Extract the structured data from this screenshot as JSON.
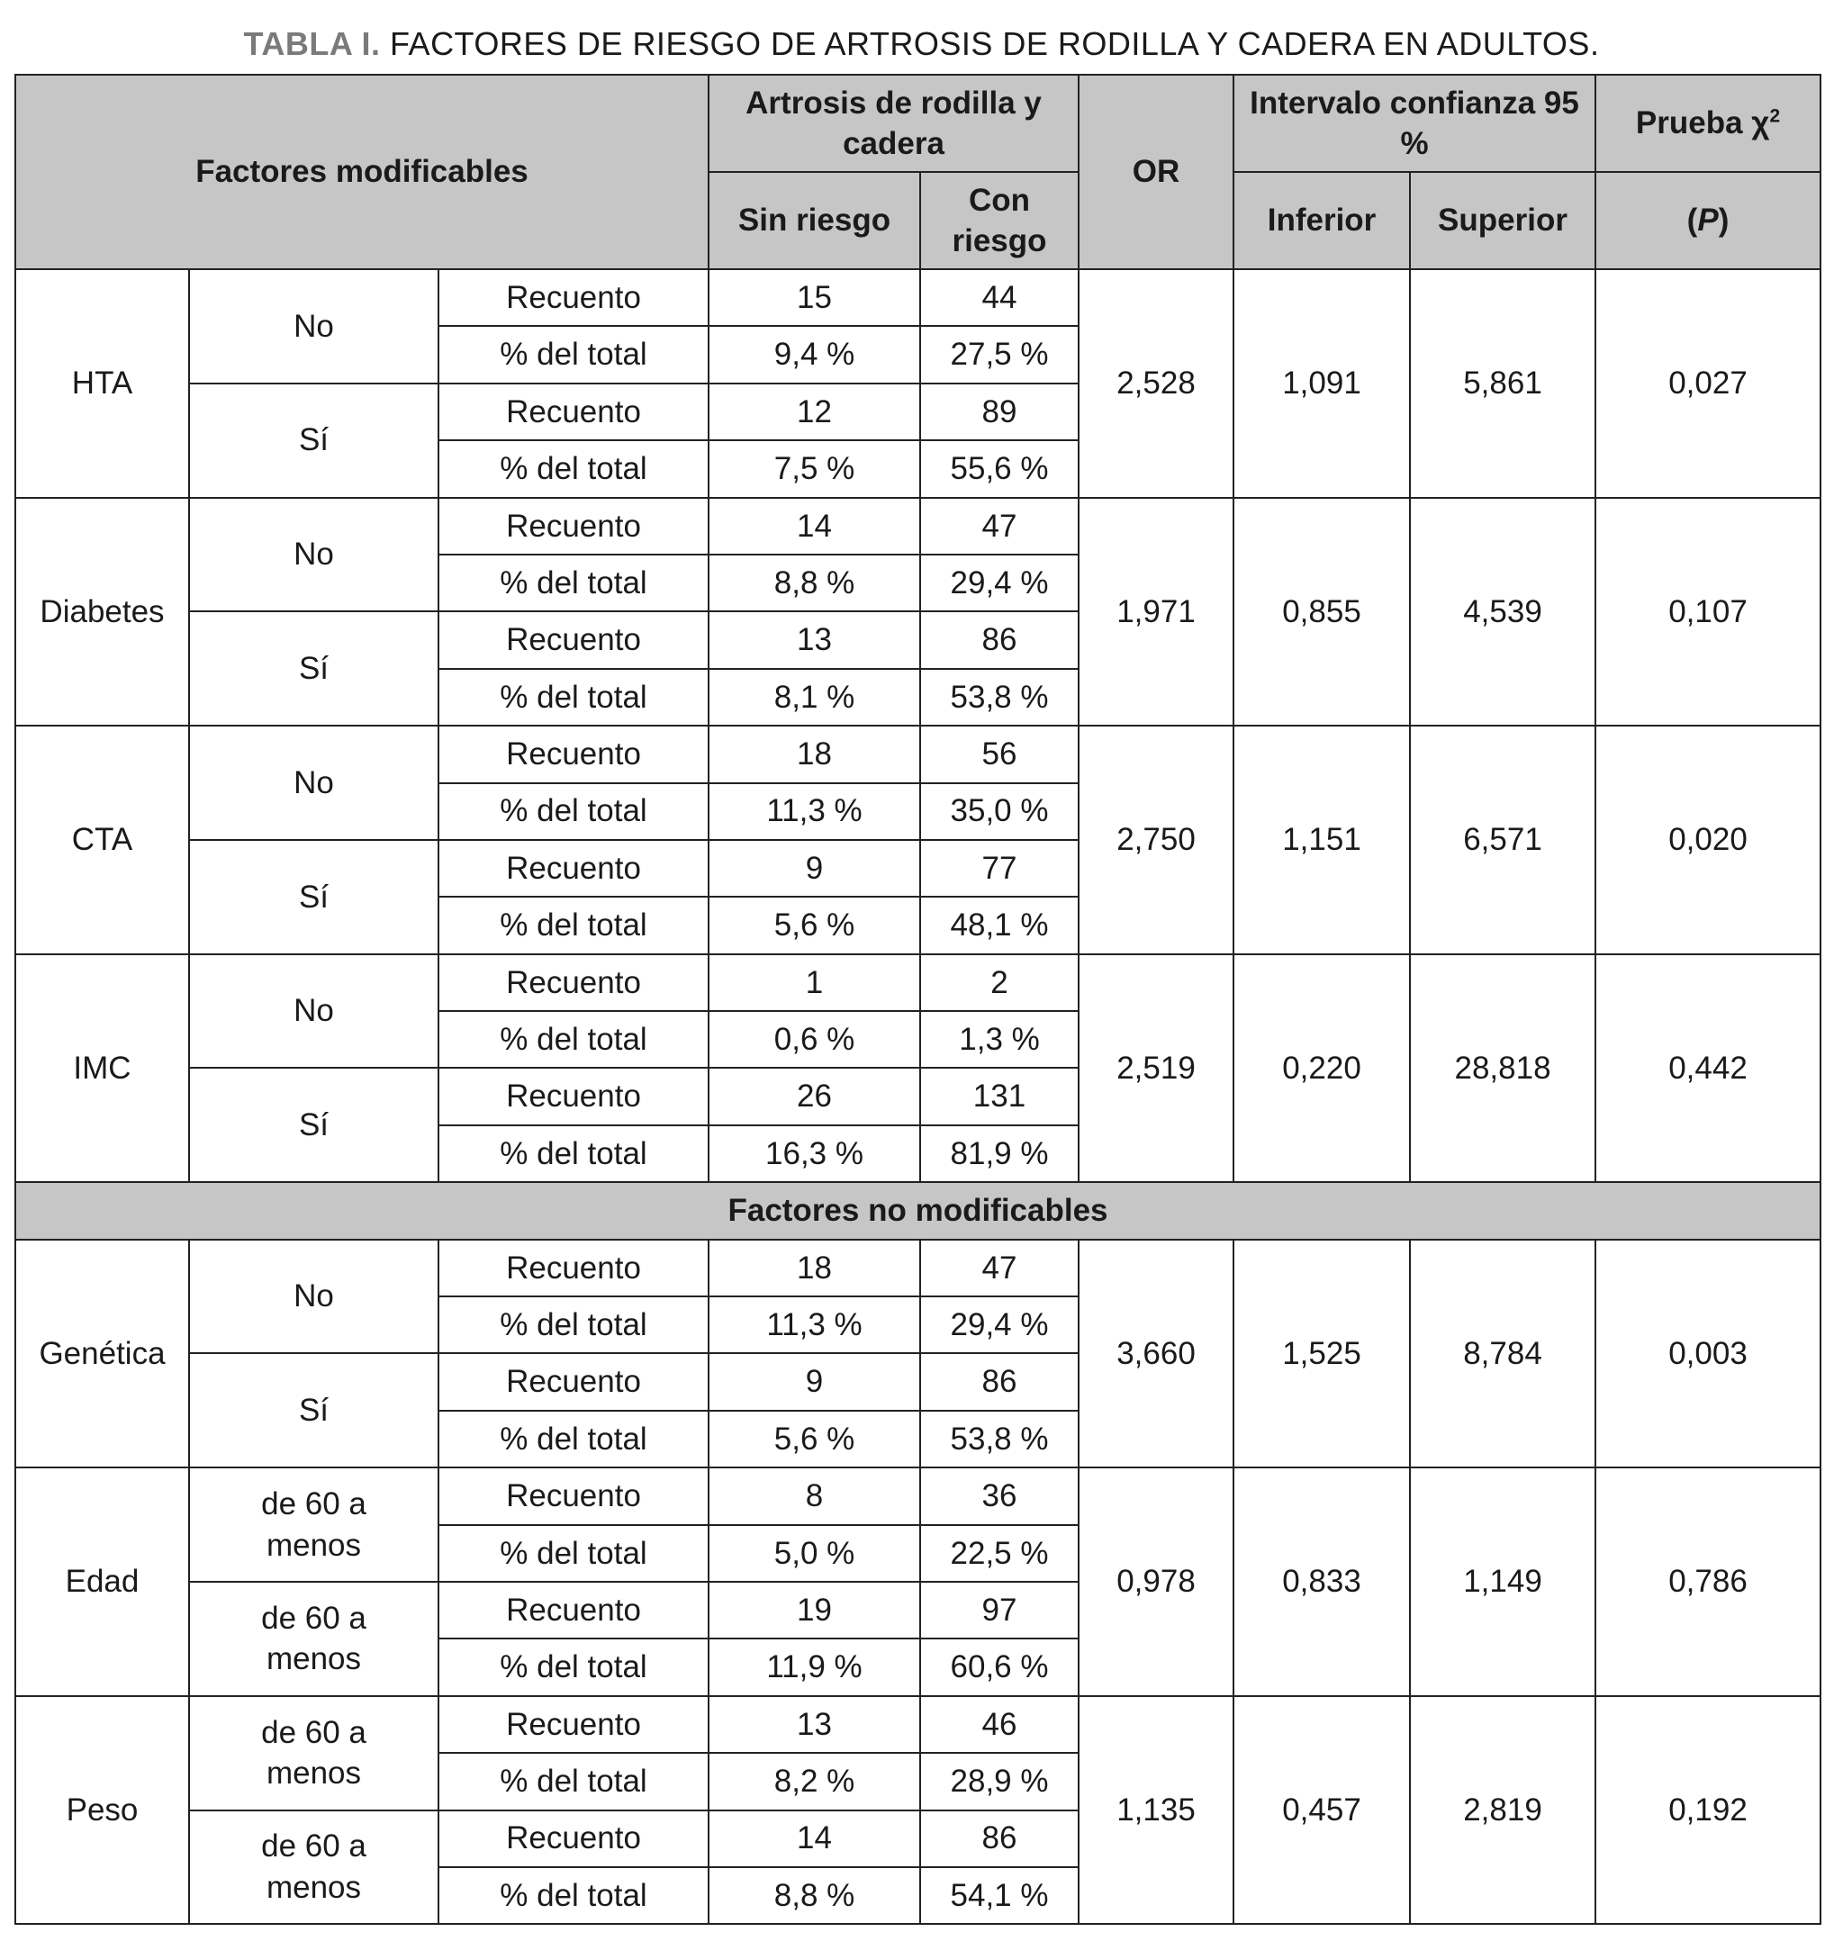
{
  "title": {
    "label": "TABLA I.",
    "text": "FACTORES DE RIESGO DE ARTROSIS DE RODILLA Y CADERA EN ADULTOS."
  },
  "header": {
    "factores_modificables": "Factores modificables",
    "artrosis": "Artrosis de rodilla y cadera",
    "sin_riesgo": "Sin riesgo",
    "con_riesgo": "Con riesgo",
    "or": "OR",
    "intervalo": "Intervalo confianza 95 %",
    "inferior": "Inferior",
    "superior": "Superior",
    "prueba": "Prueba χ",
    "prueba_sup": "2",
    "p": "(P)"
  },
  "section_no_modificables": "Factores no modificables",
  "modificables": [
    {
      "factor": "HTA",
      "or": "2,528",
      "inf": "1,091",
      "sup": "5,861",
      "p": "0,027",
      "groups": [
        {
          "label": "No",
          "rows": [
            [
              "Recuento",
              "15",
              "44"
            ],
            [
              "% del total",
              "9,4 %",
              "27,5 %"
            ]
          ]
        },
        {
          "label": "Sí",
          "rows": [
            [
              "Recuento",
              "12",
              "89"
            ],
            [
              "% del total",
              "7,5 %",
              "55,6 %"
            ]
          ]
        }
      ]
    },
    {
      "factor": "Diabetes",
      "or": "1,971",
      "inf": "0,855",
      "sup": "4,539",
      "p": "0,107",
      "groups": [
        {
          "label": "No",
          "rows": [
            [
              "Recuento",
              "14",
              "47"
            ],
            [
              "% del total",
              "8,8 %",
              "29,4 %"
            ]
          ]
        },
        {
          "label": "Sí",
          "rows": [
            [
              "Recuento",
              "13",
              "86"
            ],
            [
              "% del total",
              "8,1 %",
              "53,8 %"
            ]
          ]
        }
      ]
    },
    {
      "factor": "CTA",
      "or": "2,750",
      "inf": "1,151",
      "sup": "6,571",
      "p": "0,020",
      "groups": [
        {
          "label": "No",
          "rows": [
            [
              "Recuento",
              "18",
              "56"
            ],
            [
              "% del total",
              "11,3 %",
              "35,0 %"
            ]
          ]
        },
        {
          "label": "Sí",
          "rows": [
            [
              "Recuento",
              "9",
              "77"
            ],
            [
              "% del total",
              "5,6 %",
              "48,1 %"
            ]
          ]
        }
      ]
    },
    {
      "factor": "IMC",
      "or": "2,519",
      "inf": "0,220",
      "sup": "28,818",
      "p": "0,442",
      "groups": [
        {
          "label": "No",
          "rows": [
            [
              "Recuento",
              "1",
              "2"
            ],
            [
              "% del total",
              "0,6 %",
              "1,3 %"
            ]
          ]
        },
        {
          "label": "Sí",
          "rows": [
            [
              "Recuento",
              "26",
              "131"
            ],
            [
              "% del total",
              "16,3 %",
              "81,9 %"
            ]
          ]
        }
      ]
    }
  ],
  "no_modificables": [
    {
      "factor": "Genética",
      "or": "3,660",
      "inf": "1,525",
      "sup": "8,784",
      "p": "0,003",
      "groups": [
        {
          "label": "No",
          "rows": [
            [
              "Recuento",
              "18",
              "47"
            ],
            [
              "% del total",
              "11,3 %",
              "29,4 %"
            ]
          ]
        },
        {
          "label": "Sí",
          "rows": [
            [
              "Recuento",
              "9",
              "86"
            ],
            [
              "% del total",
              "5,6 %",
              "53,8 %"
            ]
          ]
        }
      ]
    },
    {
      "factor": "Edad",
      "or": "0,978",
      "inf": "0,833",
      "sup": "1,149",
      "p": "0,786",
      "groups": [
        {
          "label": "de 60 a menos",
          "rows": [
            [
              "Recuento",
              "8",
              "36"
            ],
            [
              "% del total",
              "5,0 %",
              "22,5 %"
            ]
          ]
        },
        {
          "label": "de 60 a menos",
          "rows": [
            [
              "Recuento",
              "19",
              "97"
            ],
            [
              "% del total",
              "11,9 %",
              "60,6 %"
            ]
          ]
        }
      ]
    },
    {
      "factor": "Peso",
      "or": "1,135",
      "inf": "0,457",
      "sup": "2,819",
      "p": "0,192",
      "groups": [
        {
          "label": "de 60 a menos",
          "rows": [
            [
              "Recuento",
              "13",
              "46"
            ],
            [
              "% del total",
              "8,2 %",
              "28,9 %"
            ]
          ]
        },
        {
          "label": "de 60 a menos",
          "rows": [
            [
              "Recuento",
              "14",
              "86"
            ],
            [
              "% del total",
              "8,8 %",
              "54,1 %"
            ]
          ]
        }
      ]
    }
  ]
}
